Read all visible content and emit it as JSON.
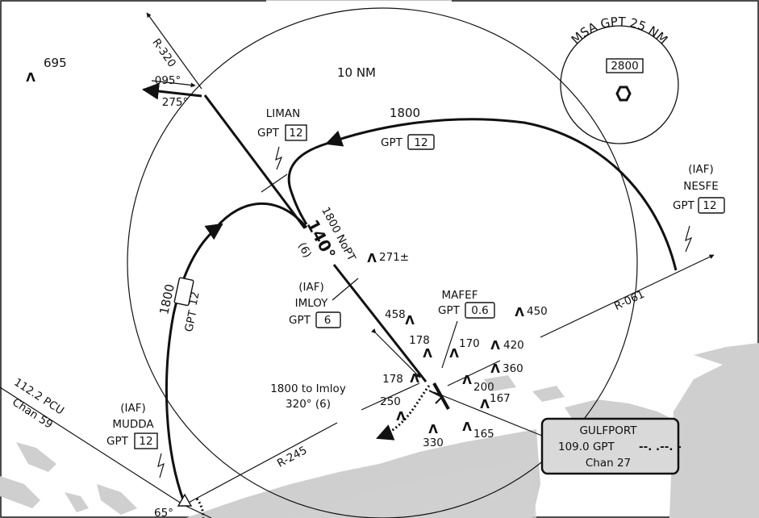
{
  "colors": {
    "ink": "#111111",
    "land": "#cfcfcf",
    "box_fill": "#d9d9d9",
    "paper": "#ffffff"
  },
  "msa": {
    "title": "MSA GPT 25 NM",
    "altitude": "2800",
    "icon": "vortac-hexagon-icon"
  },
  "ring_label": "10 NM",
  "radials": {
    "r320": "R-320",
    "r061": "R-061",
    "r245": "R-245",
    "course_out": "095°",
    "course_in": "275°",
    "arc_partial": "65°"
  },
  "fixes": {
    "liman": {
      "name": "LIMAN",
      "gpt": "GPT",
      "dme": "12"
    },
    "nesfe": {
      "role": "(IAF)",
      "name": "NESFE",
      "gpt": "GPT",
      "dme": "12"
    },
    "imloy": {
      "role": "(IAF)",
      "name": "IMLOY",
      "gpt": "GPT",
      "dme": "6"
    },
    "mafef": {
      "name": "MAFEF",
      "gpt": "GPT",
      "dme": "0.6"
    },
    "mudda": {
      "role": "(IAF)",
      "name": "MUDDA",
      "gpt": "GPT",
      "dme": "12"
    }
  },
  "arc_north": {
    "altitude": "1800",
    "gpt": "GPT",
    "dme": "12"
  },
  "arc_west": {
    "altitude": "1800",
    "gpt": "GPT",
    "dme": "12"
  },
  "final": {
    "alt": "1800 NoPT",
    "course": "140°",
    "dist": "(6)"
  },
  "imloy_note": {
    "line1": "1800 to Imloy",
    "line2": "320° (6)"
  },
  "pcu": {
    "freq": "112.2 PCU",
    "chan": "Chan 59"
  },
  "gulfport": {
    "name": "GULFPORT",
    "freq": "109.0 GPT",
    "chan": "Chan 27",
    "morse": "--. .--. -"
  },
  "obstacles": [
    "695",
    "271±",
    "458",
    "450",
    "178",
    "170",
    "420",
    "360",
    "178",
    "200",
    "167",
    "250",
    "330",
    "165"
  ]
}
